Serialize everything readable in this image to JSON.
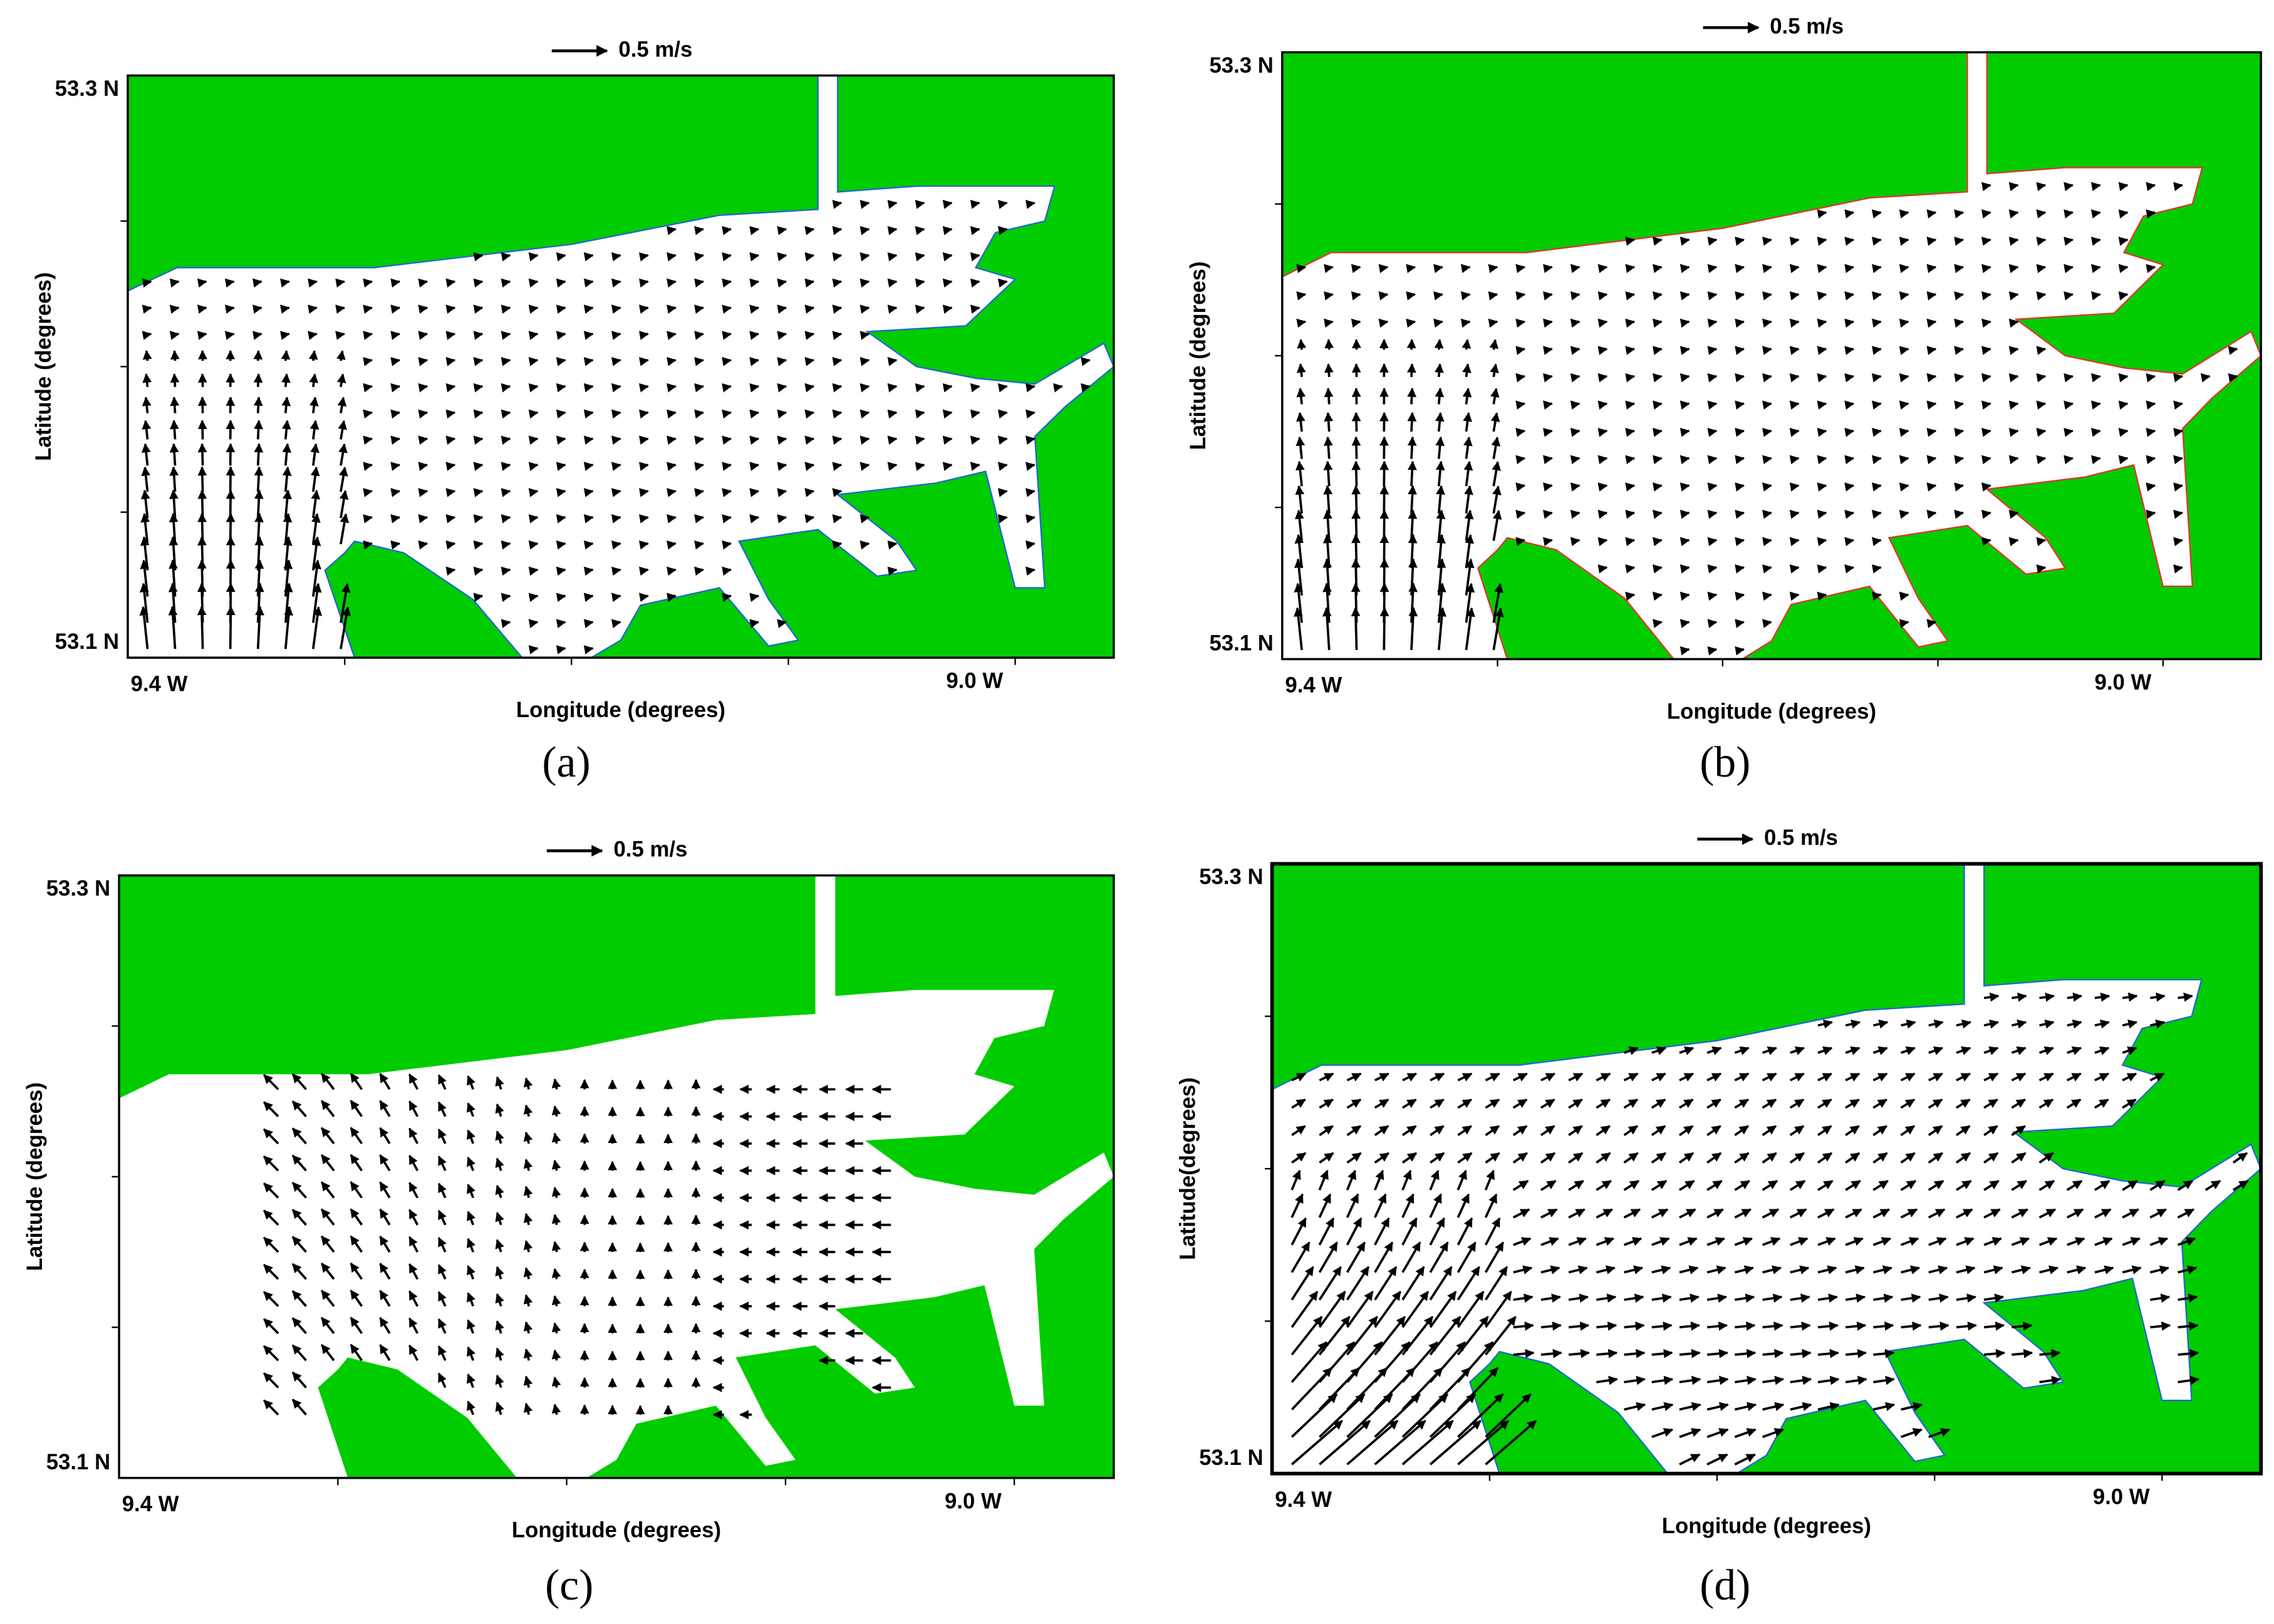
{
  "panels": [
    {
      "scale_label": "0.5 m/s",
      "y_top_label": "53.3 N",
      "y_bottom_label": "53.1 N",
      "x_left_label": "9.4 W",
      "x_right_label": "9.0 W",
      "x_title": "Longitude (degrees)",
      "y_title": "Latitude (degrees)",
      "caption": "(a)"
    },
    {
      "scale_label": "0.5 m/s",
      "y_top_label": "53.3 N",
      "y_bottom_label": "53.1 N",
      "x_left_label": "9.4 W",
      "x_right_label": "9.0 W",
      "x_title": "Longitude (degrees)",
      "y_title": "Latitude (degrees)",
      "caption": "(b)"
    },
    {
      "scale_label": "0.5 m/s",
      "y_top_label": "53.3 N",
      "y_bottom_label": "53.1 N",
      "x_left_label": "9.4 W",
      "x_right_label": "9.0 W",
      "x_title": "Longitude (degrees)",
      "y_title": "Latitude (degrees)",
      "caption": "(c)"
    },
    {
      "scale_label": "0.5 m/s",
      "y_top_label": "53.3 N",
      "y_bottom_label": "53.1 N",
      "x_left_label": "9.4 W",
      "x_right_label": "9.0 W",
      "x_title": "Longitude (degrees)",
      "y_title": "Latitude(degrees)",
      "caption": "(d)"
    }
  ]
}
